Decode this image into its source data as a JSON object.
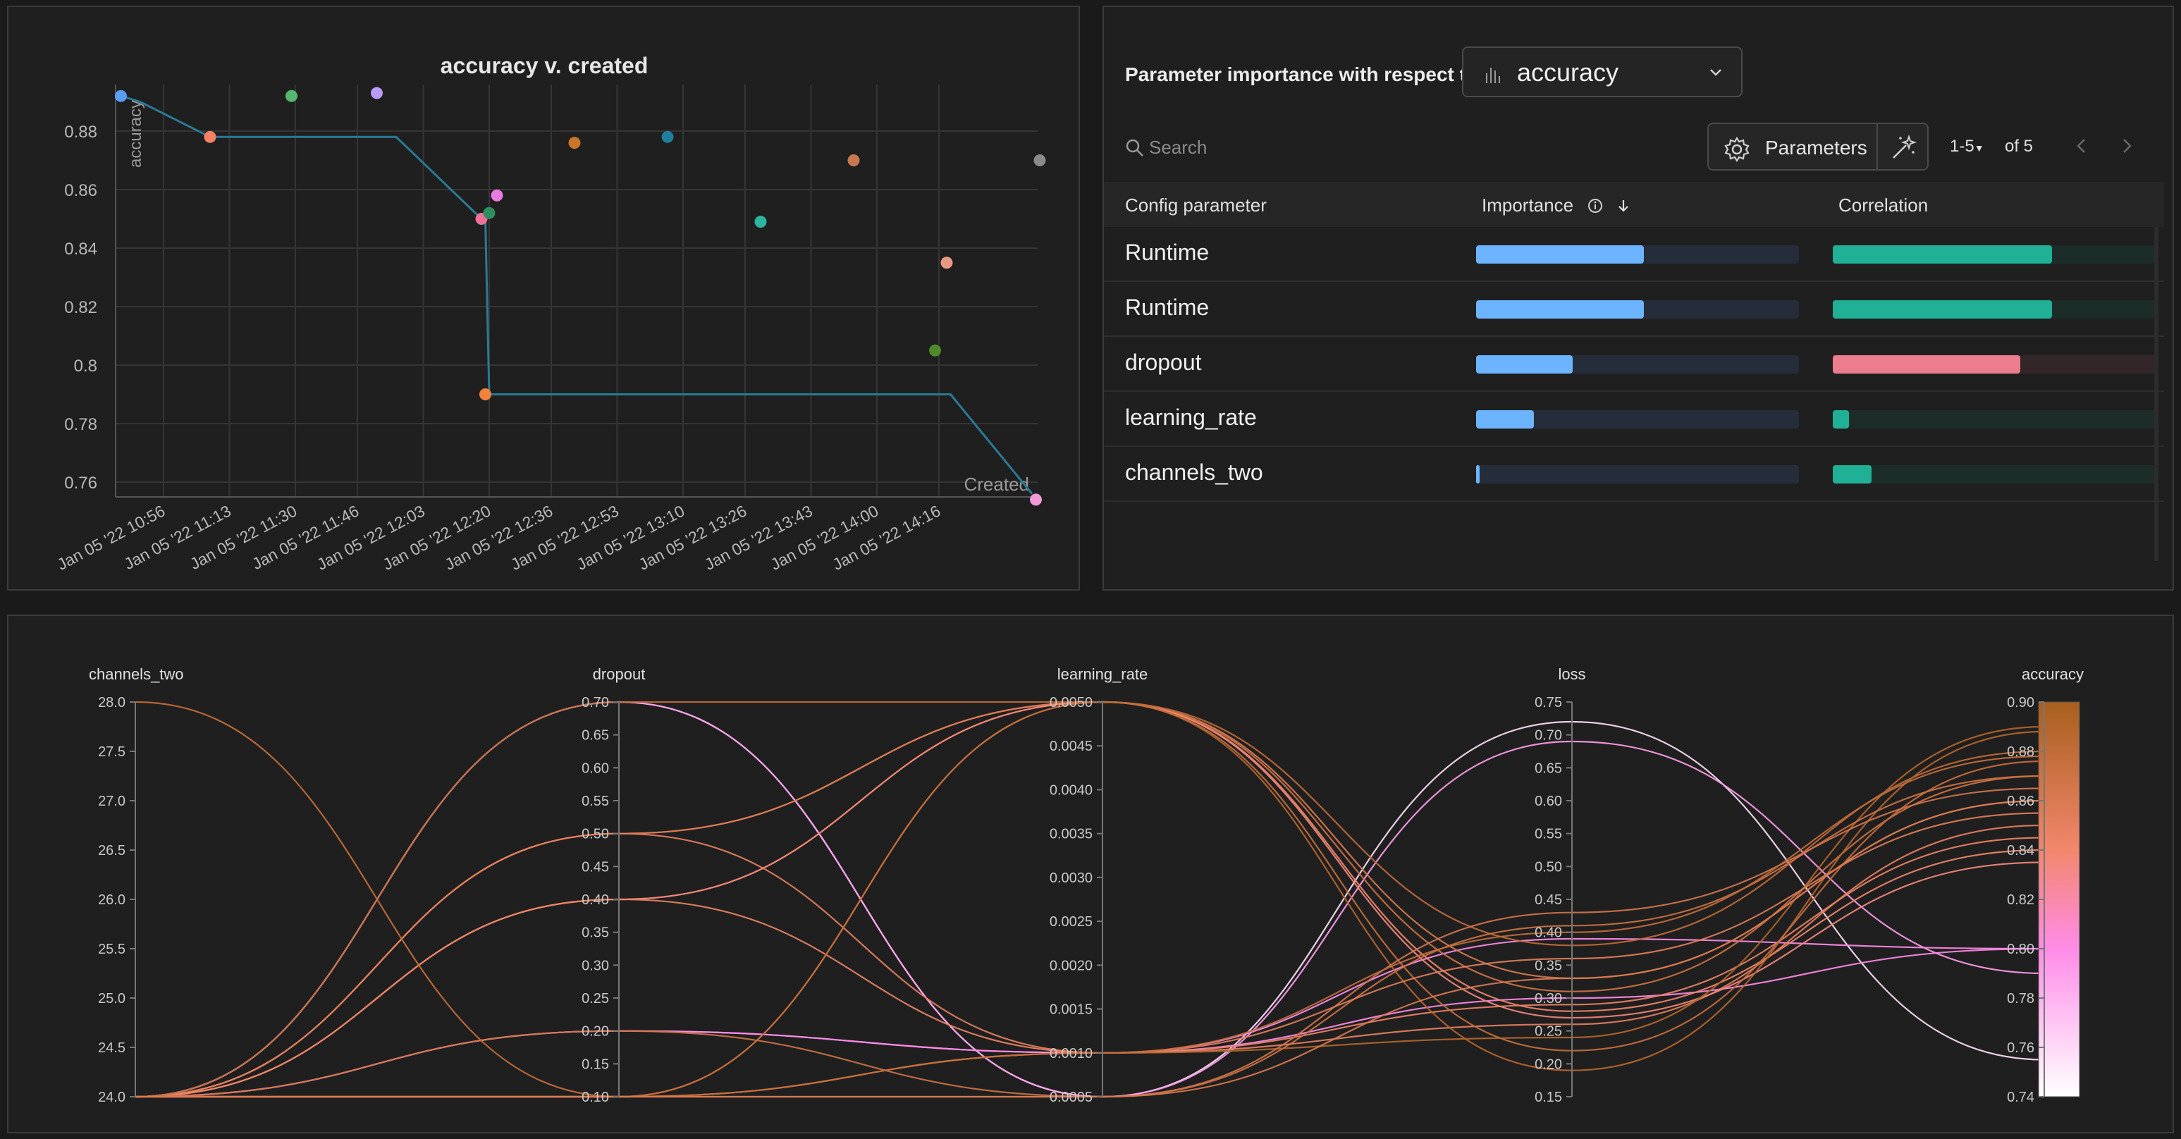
{
  "scatter_panel": {
    "colors": {
      "step_line": "#2a7a95",
      "grid": "#3a3a3a"
    }
  },
  "importance_panel": {
    "title": "Parameter importance with respect to",
    "metric_dropdown": {
      "value": "accuracy",
      "icon": "bar-chart-icon"
    },
    "search_placeholder": "Search",
    "parameters_button": "Parameters",
    "pager": {
      "range": "1-5",
      "of": "of 5"
    },
    "headers": {
      "config": "Config parameter",
      "importance": "Importance",
      "correlation": "Correlation"
    },
    "rows": [
      {
        "param": "Runtime",
        "importance": 0.52,
        "correlation": 0.68,
        "correlation_sign": "positive"
      },
      {
        "param": "Runtime",
        "importance": 0.52,
        "correlation": 0.68,
        "correlation_sign": "positive"
      },
      {
        "param": "dropout",
        "importance": 0.3,
        "correlation": 0.58,
        "correlation_sign": "negative"
      },
      {
        "param": "learning_rate",
        "importance": 0.18,
        "correlation": 0.05,
        "correlation_sign": "positive"
      },
      {
        "param": "channels_two",
        "importance": 0.01,
        "correlation": 0.12,
        "correlation_sign": "positive"
      }
    ],
    "colors": {
      "importance": "#6cb4ff",
      "positive": "#1fb096",
      "negative": "#ec7d8e"
    }
  },
  "chart_data": [
    {
      "type": "scatter",
      "title": "accuracy v. created",
      "ylabel": "accuracy",
      "xlabel": "Created",
      "ylim": [
        0.75,
        0.893
      ],
      "yticks": [
        0.76,
        0.78,
        0.8,
        0.82,
        0.84,
        0.86,
        0.88
      ],
      "x_range_minutes": [
        0,
        240
      ],
      "xticks": [
        {
          "label": "Jan 05 '22 10:56",
          "minute": 0
        },
        {
          "label": "Jan 05 '22 11:13",
          "minute": 17
        },
        {
          "label": "Jan 05 '22 11:30",
          "minute": 34
        },
        {
          "label": "Jan 05 '22 11:46",
          "minute": 50
        },
        {
          "label": "Jan 05 '22 12:03",
          "minute": 67
        },
        {
          "label": "Jan 05 '22 12:20",
          "minute": 84
        },
        {
          "label": "Jan 05 '22 12:36",
          "minute": 100
        },
        {
          "label": "Jan 05 '22 12:53",
          "minute": 117
        },
        {
          "label": "Jan 05 '22 13:10",
          "minute": 134
        },
        {
          "label": "Jan 05 '22 13:26",
          "minute": 150
        },
        {
          "label": "Jan 05 '22 13:43",
          "minute": 167
        },
        {
          "label": "Jan 05 '22 14:00",
          "minute": 184
        },
        {
          "label": "Jan 05 '22 14:16",
          "minute": 200
        }
      ],
      "points": [
        {
          "minute": -11,
          "y": 0.892,
          "color": "#5b9cf5"
        },
        {
          "minute": 12,
          "y": 0.878,
          "color": "#f58064"
        },
        {
          "minute": 33,
          "y": 0.892,
          "color": "#56b870"
        },
        {
          "minute": 55,
          "y": 0.893,
          "color": "#b89cf8"
        },
        {
          "minute": 82,
          "y": 0.85,
          "color": "#f07298"
        },
        {
          "minute": 84,
          "y": 0.852,
          "color": "#2f8e5e"
        },
        {
          "minute": 86,
          "y": 0.858,
          "color": "#e87ae0"
        },
        {
          "minute": 83,
          "y": 0.79,
          "color": "#f2823c"
        },
        {
          "minute": 106,
          "y": 0.876,
          "color": "#c8752a"
        },
        {
          "minute": 130,
          "y": 0.878,
          "color": "#1f7f9e"
        },
        {
          "minute": 154,
          "y": 0.849,
          "color": "#2bb59d"
        },
        {
          "minute": 178,
          "y": 0.87,
          "color": "#c87850"
        },
        {
          "minute": 199,
          "y": 0.805,
          "color": "#4f8a2a"
        },
        {
          "minute": 202,
          "y": 0.835,
          "color": "#e89a80"
        },
        {
          "minute": 226,
          "y": 0.87,
          "color": "#8a8a8a"
        },
        {
          "minute": 225,
          "y": 0.754,
          "color": "#f29ad8"
        }
      ],
      "best_line": [
        {
          "minute": -11,
          "y": 0.892
        },
        {
          "minute": -6,
          "y": 0.89
        },
        {
          "minute": 12,
          "y": 0.878
        },
        {
          "minute": 60,
          "y": 0.878
        },
        {
          "minute": 82,
          "y": 0.85
        },
        {
          "minute": 83,
          "y": 0.85
        },
        {
          "minute": 84,
          "y": 0.79
        },
        {
          "minute": 203,
          "y": 0.79
        },
        {
          "minute": 224,
          "y": 0.756
        }
      ]
    },
    {
      "type": "parallel_coordinates",
      "axes": [
        {
          "name": "channels_two",
          "ticks": [
            "28.0",
            "27.5",
            "27.0",
            "26.5",
            "26.0",
            "25.5",
            "25.0",
            "24.5",
            "24.0"
          ],
          "range": [
            24,
            28
          ]
        },
        {
          "name": "dropout",
          "ticks": [
            "0.70",
            "0.65",
            "0.60",
            "0.55",
            "0.50",
            "0.45",
            "0.40",
            "0.35",
            "0.30",
            "0.25",
            "0.20",
            "0.15",
            "0.10"
          ],
          "range": [
            0.1,
            0.7
          ]
        },
        {
          "name": "learning_rate",
          "ticks": [
            "0.0050",
            "0.0045",
            "0.0040",
            "0.0035",
            "0.0030",
            "0.0025",
            "0.0020",
            "0.0015",
            "0.0010",
            "0.0005"
          ],
          "range": [
            0.0005,
            0.005
          ]
        },
        {
          "name": "loss",
          "ticks": [
            "0.75",
            "0.70",
            "0.65",
            "0.60",
            "0.55",
            "0.50",
            "0.45",
            "0.40",
            "0.35",
            "0.30",
            "0.25",
            "0.20",
            "0.15"
          ],
          "range": [
            0.15,
            0.75
          ]
        },
        {
          "name": "accuracy",
          "ticks": [
            "0.90",
            "0.88",
            "0.86",
            "0.84",
            "0.82",
            "0.80",
            "0.78",
            "0.76",
            "0.74"
          ],
          "range": [
            0.74,
            0.9
          ]
        }
      ],
      "lines": [
        {
          "values": [
            24,
            0.7,
            0.0005,
            0.72,
            0.755
          ]
        },
        {
          "values": [
            24,
            0.7,
            0.0005,
            0.69,
            0.79
          ]
        },
        {
          "values": [
            24,
            0.2,
            0.001,
            0.3,
            0.8
          ]
        },
        {
          "values": [
            24,
            0.2,
            0.001,
            0.39,
            0.8
          ]
        },
        {
          "values": [
            24,
            0.5,
            0.005,
            0.28,
            0.84
          ]
        },
        {
          "values": [
            24,
            0.5,
            0.005,
            0.33,
            0.86
          ]
        },
        {
          "values": [
            24,
            0.5,
            0.001,
            0.26,
            0.85
          ]
        },
        {
          "values": [
            24,
            0.4,
            0.005,
            0.31,
            0.87
          ]
        },
        {
          "values": [
            24,
            0.4,
            0.005,
            0.27,
            0.835
          ]
        },
        {
          "values": [
            24,
            0.4,
            0.001,
            0.29,
            0.845
          ]
        },
        {
          "values": [
            24,
            0.7,
            0.005,
            0.38,
            0.88
          ]
        },
        {
          "values": [
            24,
            0.1,
            0.005,
            0.19,
            0.888
          ]
        },
        {
          "values": [
            24,
            0.1,
            0.005,
            0.22,
            0.876
          ]
        },
        {
          "values": [
            24,
            0.1,
            0.001,
            0.24,
            0.89
          ]
        },
        {
          "values": [
            24,
            0.2,
            0.0005,
            0.41,
            0.87
          ]
        },
        {
          "values": [
            24,
            0.1,
            0.0005,
            0.43,
            0.865
          ]
        },
        {
          "values": [
            24,
            0.1,
            0.001,
            0.36,
            0.855
          ]
        },
        {
          "values": [
            28,
            0.1,
            0.001,
            0.4,
            0.878
          ]
        },
        {
          "values": [
            24,
            0.1,
            0.0005,
            0.33,
            0.86
          ]
        }
      ],
      "colorscale": [
        {
          "at": 0.74,
          "color": "#ffffff"
        },
        {
          "at": 0.8,
          "color": "#ff8ce8"
        },
        {
          "at": 0.84,
          "color": "#f2876c"
        },
        {
          "at": 0.9,
          "color": "#a85f1e"
        }
      ]
    }
  ]
}
